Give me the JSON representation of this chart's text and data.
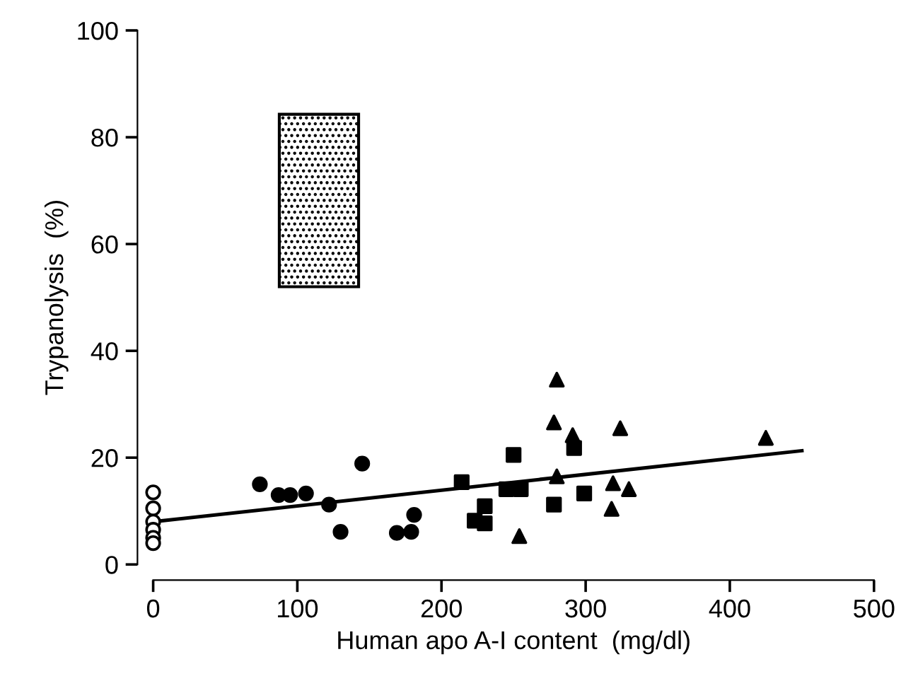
{
  "chart_data": {
    "type": "scatter",
    "xlabel": "Human apo A-I content  (mg/dl)",
    "ylabel": "Trypanolysis  (%)",
    "xlim": [
      0,
      500
    ],
    "ylim": [
      0,
      100
    ],
    "xticks": [
      0,
      100,
      200,
      300,
      400,
      500
    ],
    "yticks": [
      0,
      20,
      40,
      60,
      80,
      100
    ],
    "grid": false,
    "series": [
      {
        "type": "bar",
        "color": "#000000",
        "x": [
          115
        ],
        "base": [
          52
        ],
        "values": [
          32.3
        ]
      },
      {
        "marker": "circle",
        "color": "#ffffff",
        "x": [
          0,
          0,
          0,
          0,
          0,
          0
        ],
        "values": [
          13.5,
          10.5,
          8,
          6.5,
          5,
          4
        ]
      },
      {
        "marker": "circle",
        "color": "#000000",
        "x": [
          74,
          87,
          95,
          106,
          122,
          130,
          145,
          169,
          179,
          181
        ],
        "values": [
          15,
          13,
          13,
          13.3,
          11.2,
          6.1,
          18.9,
          5.9,
          6.1,
          9.3
        ]
      },
      {
        "marker": "square",
        "color": "#000000",
        "x": [
          214,
          250,
          245,
          255,
          230,
          223,
          230,
          278,
          292,
          299
        ],
        "values": [
          15.4,
          20.5,
          14.1,
          14.1,
          10.9,
          8.2,
          7.7,
          11.2,
          21.8,
          13.3
        ]
      },
      {
        "marker": "triangle",
        "color": "#000000",
        "x": [
          280,
          278,
          291,
          324,
          280,
          319,
          330,
          318,
          254,
          425
        ],
        "values": [
          34.6,
          26.6,
          24.2,
          25.5,
          16.5,
          15.2,
          14.1,
          10.4,
          5.3,
          23.7
        ]
      },
      {
        "type": "line",
        "color": "#000000",
        "x": [
          0,
          450
        ],
        "values": [
          8,
          21.3
        ]
      }
    ]
  }
}
